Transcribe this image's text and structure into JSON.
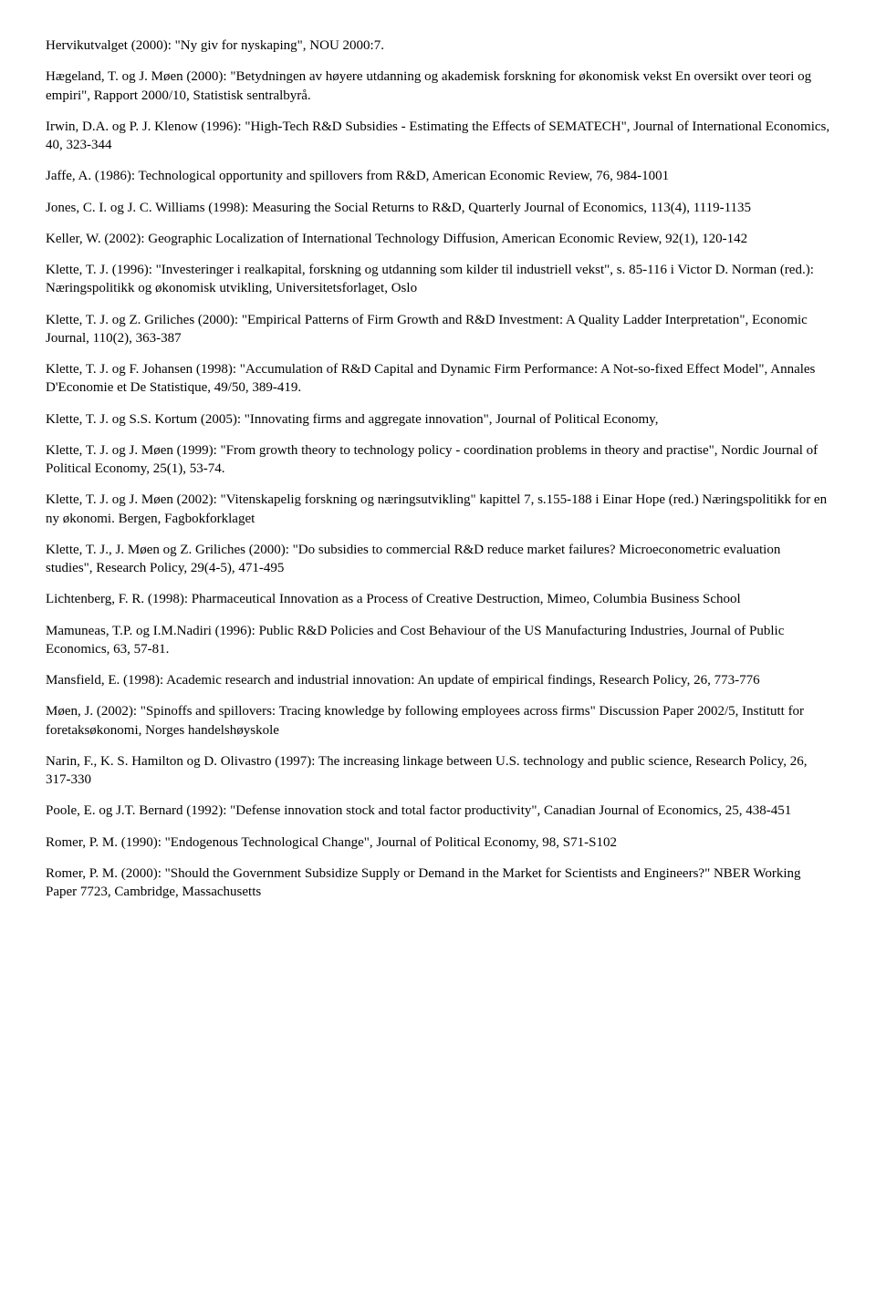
{
  "refs": [
    "Hervikutvalget (2000): \"Ny giv for nyskaping\", NOU 2000:7.",
    "Hægeland, T. og J. Møen (2000): \"Betydningen av høyere utdanning og akademisk forskning for økonomisk vekst En oversikt over teori og empiri\", Rapport 2000/10, Statistisk sentralbyrå.",
    "Irwin, D.A. og P. J. Klenow (1996): \"High-Tech R&D Subsidies - Estimating the Effects of SEMATECH\", Journal of International Economics, 40, 323-344",
    "Jaffe, A. (1986): Technological opportunity and spillovers from R&D, American Economic Review, 76, 984-1001",
    "Jones, C. I. og  J. C. Williams (1998): Measuring the Social Returns to R&D, Quarterly Journal of Economics, 113(4), 1119-1135",
    "Keller, W. (2002): Geographic Localization of International Technology Diffusion, American Economic Review, 92(1), 120-142",
    "Klette, T. J. (1996): \"Investeringer i realkapital, forskning og utdanning som kilder til industriell vekst\", s. 85-116 i Victor D. Norman (red.): Næringspolitikk og økonomisk utvikling, Universitetsforlaget, Oslo",
    "Klette, T. J. og Z. Griliches (2000): \"Empirical Patterns of Firm Growth and R&D Investment: A Quality Ladder Interpretation\", Economic Journal, 110(2), 363-387",
    "Klette, T. J. og F. Johansen (1998): \"Accumulation of R&D Capital and Dynamic Firm Performance: A Not-so-fixed Effect Model\", Annales D'Economie et De Statistique, 49/50, 389-419.",
    "Klette, T. J. og S.S. Kortum (2005): \"Innovating firms and aggregate innovation\", Journal of Political Economy,",
    "Klette, T. J. og J. Møen (1999): \"From growth theory to technology policy - coordination problems in theory and practise\", Nordic Journal of Political Economy, 25(1), 53-74.",
    "Klette, T. J. og J. Møen (2002): \"Vitenskapelig forskning og næringsutvikling\" kapittel 7, s.155-188 i Einar Hope (red.) Næringspolitikk for en ny økonomi. Bergen, Fagbokforklaget",
    "Klette, T. J., J. Møen og Z. Griliches (2000): \"Do subsidies to commercial R&D reduce market failures? Microeconometric evaluation studies\", Research Policy, 29(4-5), 471-495",
    "Lichtenberg, F. R. (1998): Pharmaceutical Innovation as a Process of Creative Destruction, Mimeo, Columbia Business School",
    "Mamuneas, T.P. og I.M.Nadiri (1996): Public R&D Policies and Cost Behaviour of the US Manufacturing Industries, Journal of Public Economics, 63, 57-81.",
    "Mansfield, E. (1998): Academic research and industrial innovation: An update of empirical findings, Research Policy, 26, 773-776",
    "Møen, J. (2002): \"Spinoffs and spillovers: Tracing knowledge by following employees across firms\" Discussion Paper 2002/5, Institutt for foretaksøkonomi, Norges handelshøyskole",
    "Narin, F., K. S. Hamilton og D. Olivastro (1997): The increasing linkage between U.S. technology and public science, Research Policy, 26, 317-330",
    "Poole, E. og J.T. Bernard (1992): \"Defense innovation stock and total factor productivity\", Canadian Journal of Economics, 25, 438-451",
    "Romer, P. M. (1990): \"Endogenous Technological Change\", Journal of Political Economy, 98, S71-S102",
    "Romer, P. M. (2000): \"Should the Government Subsidize Supply or Demand in the Market for Scientists and Engineers?\" NBER Working Paper 7723, Cambridge, Massachusetts"
  ]
}
